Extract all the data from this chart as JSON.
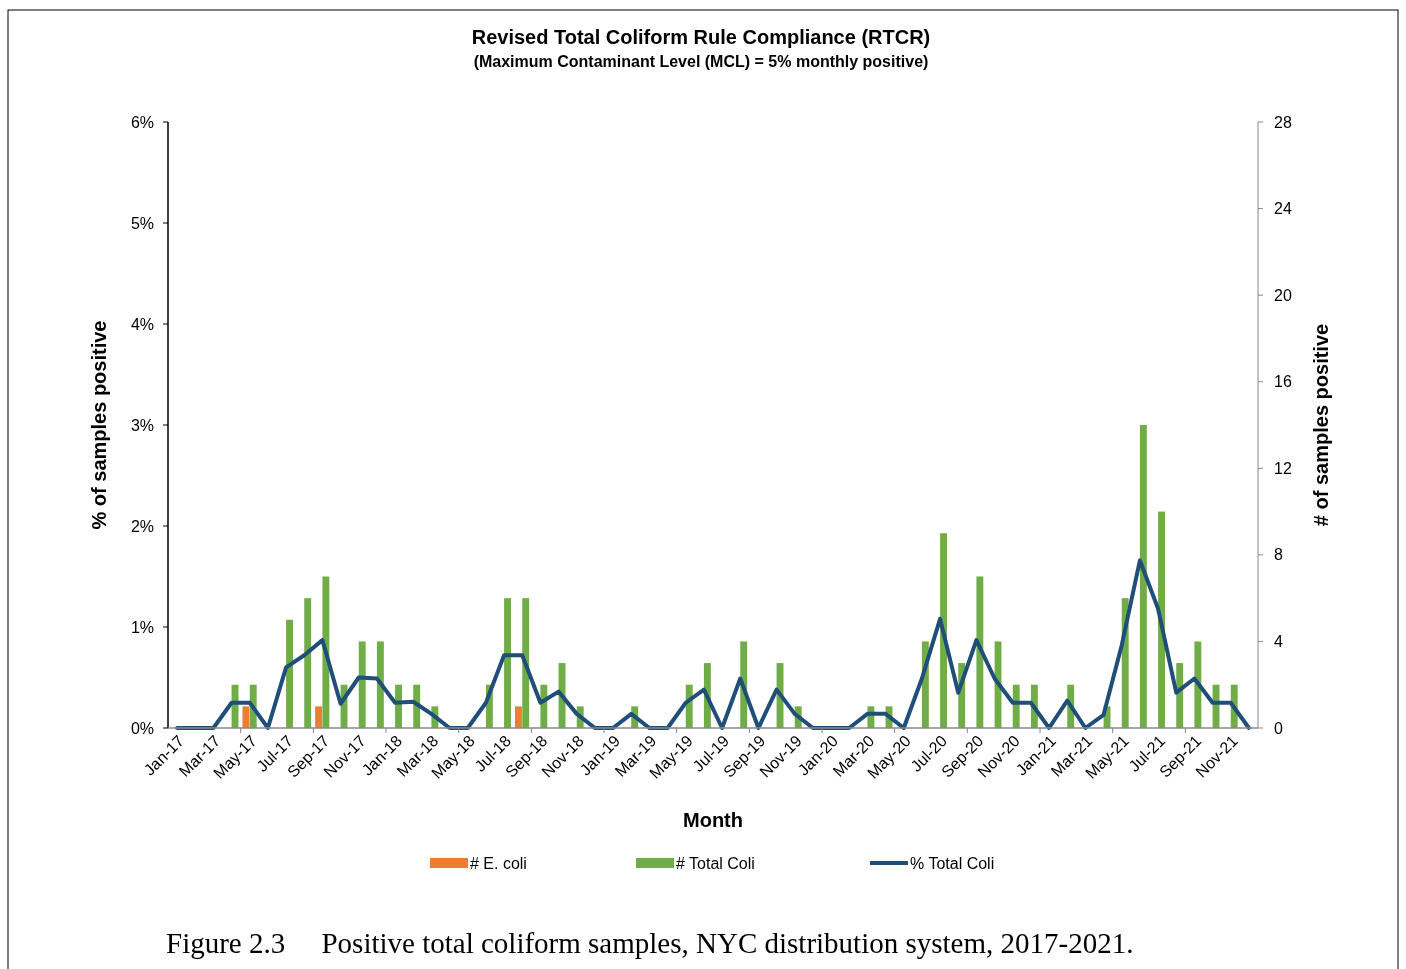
{
  "chart_data": {
    "type": "bar",
    "title": "Revised Total Coliform Rule Compliance (RTCR)",
    "subtitle": "(Maximum Contaminant Level (MCL) = 5% monthly positive)",
    "xlabel": "Month",
    "ylabel": "% of samples positive",
    "y2label": "# of samples positive",
    "categories": [
      "Jan-17",
      null,
      "Mar-17",
      null,
      "May-17",
      null,
      "Jul-17",
      null,
      "Sep-17",
      null,
      "Nov-17",
      null,
      "Jan-18",
      null,
      "Mar-18",
      null,
      "May-18",
      null,
      "Jul-18",
      null,
      "Sep-18",
      null,
      "Nov-18",
      null,
      "Jan-19",
      null,
      "Mar-19",
      null,
      "May-19",
      null,
      "Jul-19",
      null,
      "Sep-19",
      null,
      "Nov-19",
      null,
      "Jan-20",
      null,
      "Mar-20",
      null,
      "May-20",
      null,
      "Jul-20",
      null,
      "Sep-20",
      null,
      "Nov-20",
      null,
      "Jan-21",
      null,
      "Mar-21",
      null,
      "May-21",
      null,
      "Jul-21",
      null,
      "Sep-21",
      null,
      "Nov-21",
      null
    ],
    "series": [
      {
        "name": "# E. coli",
        "axis": "y2",
        "color": "#ed7d31",
        "values": [
          0,
          0,
          0,
          0,
          1,
          0,
          0,
          0,
          1,
          0,
          0,
          0,
          0,
          0,
          0,
          0,
          0,
          0,
          0,
          1,
          0,
          0,
          0,
          0,
          0,
          0,
          0,
          0,
          0,
          0,
          0,
          0,
          0,
          0,
          0,
          0,
          0,
          0,
          0,
          0,
          0,
          0,
          0,
          0,
          0,
          0,
          0,
          0,
          0,
          0,
          0,
          0,
          0,
          0,
          0,
          0,
          0,
          0,
          0,
          0
        ]
      },
      {
        "name": "# Total Coli",
        "axis": "y2",
        "color": "#70ad47",
        "values": [
          0,
          0,
          0,
          2,
          2,
          0,
          5,
          6,
          7,
          2,
          4,
          4,
          2,
          2,
          1,
          0,
          0,
          2,
          6,
          6,
          2,
          3,
          1,
          0,
          0,
          1,
          0,
          0,
          2,
          3,
          0,
          4,
          0,
          3,
          1,
          0,
          0,
          0,
          1,
          1,
          0,
          4,
          9,
          3,
          7,
          4,
          2,
          2,
          0,
          2,
          0,
          1,
          6,
          14,
          10,
          3,
          4,
          2,
          2,
          0
        ]
      },
      {
        "name": "% Total Coli",
        "type": "line",
        "color": "#1f4e79",
        "values": [
          0,
          0,
          0,
          0.25,
          0.25,
          0,
          0.6,
          0.72,
          0.87,
          0.24,
          0.5,
          0.49,
          0.25,
          0.26,
          0.14,
          0,
          0,
          0.25,
          0.72,
          0.72,
          0.25,
          0.36,
          0.14,
          0,
          0,
          0.14,
          0,
          0,
          0.25,
          0.38,
          0,
          0.49,
          0,
          0.38,
          0.14,
          0,
          0,
          0,
          0.14,
          0.14,
          0,
          0.49,
          1.08,
          0.35,
          0.87,
          0.49,
          0.25,
          0.25,
          0,
          0.27,
          0,
          0.13,
          0.82,
          1.66,
          1.18,
          0.35,
          0.49,
          0.25,
          0.25,
          0
        ]
      }
    ],
    "ylim": [
      0,
      6
    ],
    "yticks": [
      {
        "value": 0,
        "label": "0%"
      },
      {
        "value": 1,
        "label": "1%"
      },
      {
        "value": 2,
        "label": "2%"
      },
      {
        "value": 3,
        "label": "3%"
      },
      {
        "value": 4,
        "label": "4%"
      },
      {
        "value": 5,
        "label": "5%"
      },
      {
        "value": 6,
        "label": "6%"
      }
    ],
    "y2lim": [
      0,
      28
    ],
    "y2ticks": [
      0,
      4,
      8,
      12,
      16,
      20,
      24,
      28
    ],
    "legend": "bottom",
    "grid": false,
    "marker": "none",
    "line_style": "solid",
    "annotations": [
      "Figure 2.3     Positive total coliform samples, NYC distribution system, 2017-2021."
    ]
  }
}
